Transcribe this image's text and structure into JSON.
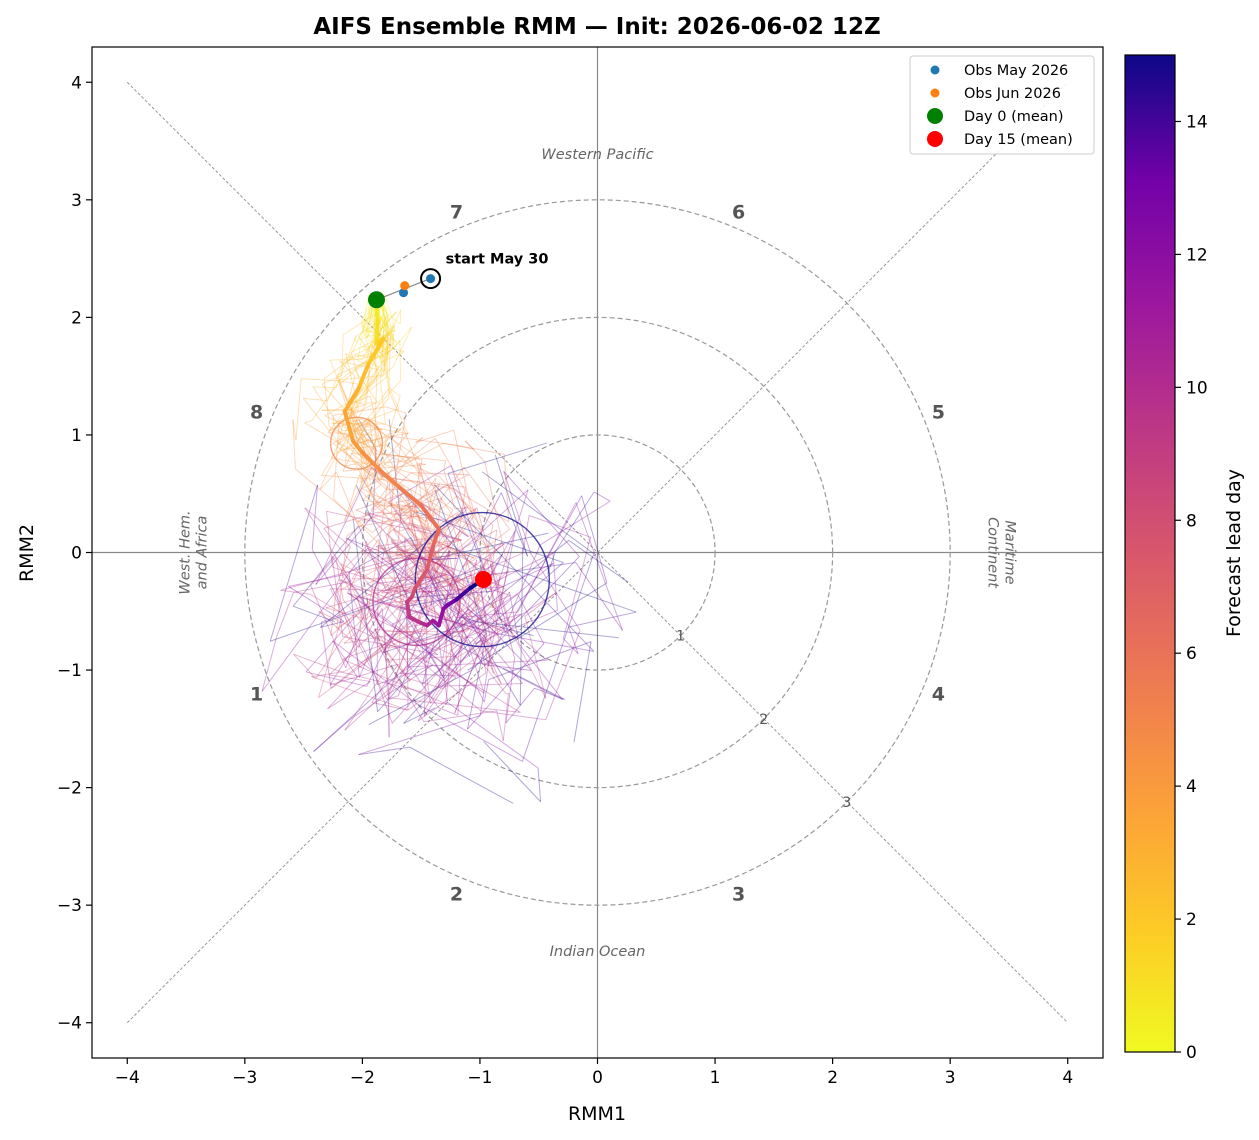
{
  "chart_data": {
    "type": "scatter",
    "title": "AIFS Ensemble RMM  —  Init: 2026-06-02 12Z",
    "xlabel": "RMM1",
    "ylabel": "RMM2",
    "xlim": [
      -4.3,
      4.3
    ],
    "ylim": [
      -4.3,
      4.3
    ],
    "x_ticks": [
      -4,
      -3,
      -2,
      -1,
      0,
      1,
      2,
      3,
      4
    ],
    "y_ticks": [
      -4,
      -3,
      -2,
      -1,
      0,
      1,
      2,
      3,
      4
    ],
    "tick_labels": [
      "−4",
      "−3",
      "−2",
      "−1",
      "0",
      "1",
      "2",
      "3",
      "4"
    ],
    "amplitude_circles": [
      1,
      2,
      3
    ],
    "ring_labels": [
      "1",
      "2",
      "3"
    ],
    "phases": [
      {
        "label": "1",
        "x": -2.9,
        "y": -1.2
      },
      {
        "label": "2",
        "x": -1.2,
        "y": -2.9
      },
      {
        "label": "3",
        "x": 1.2,
        "y": -2.9
      },
      {
        "label": "4",
        "x": 2.9,
        "y": -1.2
      },
      {
        "label": "5",
        "x": 2.9,
        "y": 1.2
      },
      {
        "label": "6",
        "x": 1.2,
        "y": 2.9
      },
      {
        "label": "7",
        "x": -1.2,
        "y": 2.9
      },
      {
        "label": "8",
        "x": -2.9,
        "y": 1.2
      }
    ],
    "regions": {
      "top": "Western Pacific",
      "bottom": "Indian Ocean",
      "left_line1": "West. Hem.",
      "left_line2": "and Africa",
      "right_line1": "Maritime",
      "right_line2": "Continent"
    },
    "obs_may": [
      {
        "x": -1.65,
        "y": 2.21
      },
      {
        "x": -1.42,
        "y": 2.33
      }
    ],
    "obs_jun": [
      {
        "x": -1.64,
        "y": 2.27
      }
    ],
    "start_marker": {
      "x": -1.42,
      "y": 2.33,
      "label": "start May 30"
    },
    "ensemble_mean": [
      {
        "day": 0,
        "x": -1.88,
        "y": 2.15
      },
      {
        "day": 0.5,
        "x": -1.87,
        "y": 1.97
      },
      {
        "day": 1,
        "x": -1.88,
        "y": 1.78
      },
      {
        "day": 1.5,
        "x": -1.82,
        "y": 1.82
      },
      {
        "day": 2,
        "x": -1.95,
        "y": 1.6
      },
      {
        "day": 2.5,
        "x": -2.03,
        "y": 1.4
      },
      {
        "day": 3,
        "x": -2.15,
        "y": 1.2
      },
      {
        "day": 3.5,
        "x": -2.08,
        "y": 0.95
      },
      {
        "day": 4,
        "x": -2.0,
        "y": 0.85
      },
      {
        "day": 4.5,
        "x": -1.85,
        "y": 0.7
      },
      {
        "day": 5,
        "x": -1.68,
        "y": 0.55
      },
      {
        "day": 5.5,
        "x": -1.5,
        "y": 0.4
      },
      {
        "day": 6,
        "x": -1.35,
        "y": 0.2
      },
      {
        "day": 6.5,
        "x": -1.4,
        "y": 0.05
      },
      {
        "day": 7,
        "x": -1.45,
        "y": -0.15
      },
      {
        "day": 7.5,
        "x": -1.55,
        "y": -0.3
      },
      {
        "day": 8,
        "x": -1.58,
        "y": -0.38
      },
      {
        "day": 8.5,
        "x": -1.62,
        "y": -0.42
      },
      {
        "day": 9,
        "x": -1.6,
        "y": -0.55
      },
      {
        "day": 9.5,
        "x": -1.5,
        "y": -0.6
      },
      {
        "day": 10,
        "x": -1.45,
        "y": -0.62
      },
      {
        "day": 10.5,
        "x": -1.4,
        "y": -0.58
      },
      {
        "day": 11,
        "x": -1.35,
        "y": -0.62
      },
      {
        "day": 11.5,
        "x": -1.31,
        "y": -0.48
      },
      {
        "day": 12,
        "x": -1.28,
        "y": -0.45
      },
      {
        "day": 13,
        "x": -1.2,
        "y": -0.4
      },
      {
        "day": 14,
        "x": -1.08,
        "y": -0.3
      },
      {
        "day": 15,
        "x": -0.97,
        "y": -0.23
      }
    ],
    "spread_circles": [
      {
        "day": 5,
        "x": -2.05,
        "y": 0.93,
        "r": 0.22
      },
      {
        "day": 10,
        "x": -1.54,
        "y": -0.42,
        "r": 0.37
      },
      {
        "day": 15,
        "x": -0.98,
        "y": -0.23,
        "r": 0.57
      }
    ],
    "day0_point": {
      "x": -1.88,
      "y": 2.15
    },
    "day15_point": {
      "x": -0.97,
      "y": -0.23
    },
    "legend": {
      "position": "upper right",
      "entries": [
        {
          "label": "Obs May 2026",
          "color": "#1f77b4"
        },
        {
          "label": "Obs Jun 2026",
          "color": "#ff7f0e"
        },
        {
          "label": "Day 0 (mean)",
          "color": "#008000"
        },
        {
          "label": "Day 15 (mean)",
          "color": "#ff0000"
        }
      ]
    },
    "colorbar": {
      "label": "Forecast lead day",
      "colormap": "plasma_r",
      "range": [
        0,
        15
      ],
      "ticks": [
        0,
        2,
        4,
        6,
        8,
        10,
        12,
        14
      ]
    },
    "ensemble_members": 30,
    "grid": false
  }
}
